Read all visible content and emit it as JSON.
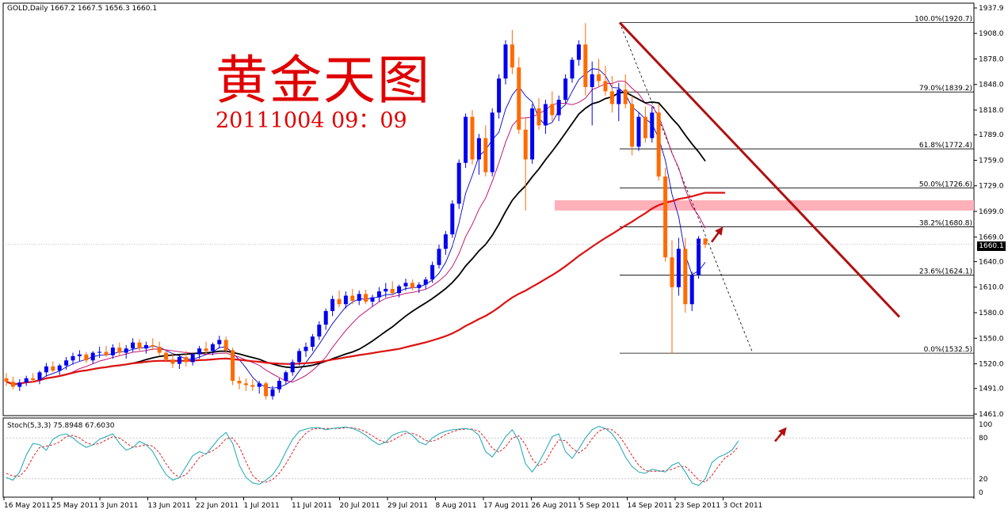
{
  "header": {
    "symbol_info": "GOLD,Daily  1667.2 1667.5 1656.3 1660.1",
    "title": "黄金天图",
    "timestamp": "20111004 09：09"
  },
  "current_price_tag": "1660.1",
  "oscillator": {
    "info": "Stoch(5,3,3) 75.8948 67.6030",
    "levels": [
      "100",
      "80",
      "20",
      "0"
    ]
  },
  "colors": {
    "bull_candle": "#0000ee",
    "bear_candle": "#ff6a00",
    "ma_fast": "#0000cc",
    "ma_mid": "#c0006a",
    "ma_slow": "#000000",
    "ma_long": "#dd1111",
    "trendline": "#b01010",
    "resistance_zone": "#ffb0b8",
    "stoch_main": "#1aa6b5",
    "stoch_signal": "#e02020"
  },
  "chart_data": [
    {
      "type": "candlestick",
      "ylim": [
        1461,
        1937
      ],
      "y_ticks": [
        1937.9,
        1908.0,
        1878.0,
        1848.0,
        1818.0,
        1789.0,
        1759.0,
        1729.0,
        1699.0,
        1669.0,
        1640.0,
        1610.0,
        1580.0,
        1550.0,
        1520.0,
        1491.0,
        1461.0
      ],
      "x_tick_labels": [
        "16 May 2011",
        "25 May 2011",
        "3 Jun 2011",
        "13 Jun 2011",
        "22 Jun 2011",
        "1 Jul 2011",
        "11 Jul 2011",
        "20 Jul 2011",
        "29 Jul 2011",
        "8 Aug 2011",
        "17 Aug 2011",
        "26 Aug 2011",
        "5 Sep 2011",
        "14 Sep 2011",
        "23 Sep 2011",
        "3 Oct 2011"
      ],
      "fibonacci": [
        {
          "label": "100.0%(1920.7)",
          "value": 1920.7
        },
        {
          "label": "79.0%(1839.2)",
          "value": 1839.2
        },
        {
          "label": "61.8%(1772.4)",
          "value": 1772.4
        },
        {
          "label": "50.0%(1726.6)",
          "value": 1726.6
        },
        {
          "label": "38.2%(1680.8)",
          "value": 1680.8
        },
        {
          "label": "23.6%(1624.1)",
          "value": 1624.1
        },
        {
          "label": "0.0%(1532.5)",
          "value": 1532.5
        }
      ],
      "resistance_zone": [
        1700,
        1712
      ],
      "current_price": 1660.1,
      "candles": [
        [
          1503,
          1509,
          1494,
          1499
        ],
        [
          1499,
          1505,
          1490,
          1493
        ],
        [
          1493,
          1502,
          1488,
          1498
        ],
        [
          1498,
          1506,
          1494,
          1503
        ],
        [
          1503,
          1509,
          1498,
          1501
        ],
        [
          1501,
          1512,
          1496,
          1510
        ],
        [
          1510,
          1521,
          1505,
          1517
        ],
        [
          1517,
          1523,
          1510,
          1512
        ],
        [
          1512,
          1520,
          1507,
          1518
        ],
        [
          1518,
          1528,
          1513,
          1524
        ],
        [
          1524,
          1533,
          1519,
          1529
        ],
        [
          1529,
          1536,
          1523,
          1531
        ],
        [
          1531,
          1534,
          1521,
          1524
        ],
        [
          1524,
          1535,
          1520,
          1533
        ],
        [
          1533,
          1540,
          1527,
          1534
        ],
        [
          1534,
          1541,
          1528,
          1530
        ],
        [
          1530,
          1543,
          1526,
          1539
        ],
        [
          1539,
          1545,
          1530,
          1533
        ],
        [
          1533,
          1542,
          1526,
          1538
        ],
        [
          1538,
          1550,
          1534,
          1545
        ],
        [
          1545,
          1549,
          1535,
          1538
        ],
        [
          1538,
          1546,
          1532,
          1542
        ],
        [
          1542,
          1550,
          1536,
          1540
        ],
        [
          1540,
          1546,
          1530,
          1533
        ],
        [
          1533,
          1537,
          1522,
          1525
        ],
        [
          1525,
          1532,
          1515,
          1520
        ],
        [
          1520,
          1530,
          1514,
          1528
        ],
        [
          1528,
          1535,
          1517,
          1522
        ],
        [
          1522,
          1533,
          1518,
          1531
        ],
        [
          1531,
          1541,
          1526,
          1538
        ],
        [
          1538,
          1546,
          1532,
          1535
        ],
        [
          1535,
          1545,
          1530,
          1543
        ],
        [
          1543,
          1553,
          1538,
          1548
        ],
        [
          1548,
          1552,
          1532,
          1536
        ],
        [
          1536,
          1539,
          1495,
          1500
        ],
        [
          1500,
          1505,
          1490,
          1497
        ],
        [
          1497,
          1503,
          1488,
          1495
        ],
        [
          1495,
          1502,
          1488,
          1493
        ],
        [
          1493,
          1500,
          1485,
          1497
        ],
        [
          1497,
          1499,
          1478,
          1482
        ],
        [
          1482,
          1494,
          1478,
          1490
        ],
        [
          1490,
          1503,
          1486,
          1500
        ],
        [
          1500,
          1512,
          1496,
          1510
        ],
        [
          1510,
          1525,
          1506,
          1522
        ],
        [
          1522,
          1538,
          1518,
          1535
        ],
        [
          1535,
          1545,
          1528,
          1540
        ],
        [
          1540,
          1555,
          1535,
          1552
        ],
        [
          1552,
          1570,
          1548,
          1566
        ],
        [
          1566,
          1585,
          1560,
          1582
        ],
        [
          1582,
          1600,
          1576,
          1596
        ],
        [
          1596,
          1606,
          1586,
          1590
        ],
        [
          1590,
          1605,
          1585,
          1600
        ],
        [
          1600,
          1608,
          1590,
          1594
        ],
        [
          1594,
          1606,
          1589,
          1602
        ],
        [
          1602,
          1607,
          1590,
          1593
        ],
        [
          1593,
          1601,
          1587,
          1598
        ],
        [
          1598,
          1610,
          1593,
          1605
        ],
        [
          1605,
          1615,
          1598,
          1608
        ],
        [
          1608,
          1617,
          1600,
          1603
        ],
        [
          1603,
          1613,
          1598,
          1611
        ],
        [
          1611,
          1620,
          1606,
          1615
        ],
        [
          1615,
          1619,
          1606,
          1609
        ],
        [
          1609,
          1616,
          1603,
          1613
        ],
        [
          1613,
          1622,
          1608,
          1619
        ],
        [
          1619,
          1640,
          1615,
          1636
        ],
        [
          1636,
          1660,
          1632,
          1655
        ],
        [
          1655,
          1676,
          1648,
          1672
        ],
        [
          1672,
          1712,
          1668,
          1708
        ],
        [
          1708,
          1760,
          1702,
          1756
        ],
        [
          1756,
          1814,
          1750,
          1810
        ],
        [
          1810,
          1818,
          1754,
          1760
        ],
        [
          1760,
          1790,
          1742,
          1785
        ],
        [
          1785,
          1800,
          1740,
          1745
        ],
        [
          1745,
          1820,
          1740,
          1815
        ],
        [
          1815,
          1860,
          1808,
          1855
        ],
        [
          1855,
          1900,
          1848,
          1895
        ],
        [
          1895,
          1912,
          1860,
          1868
        ],
        [
          1868,
          1880,
          1790,
          1795
        ],
        [
          1795,
          1810,
          1700,
          1760
        ],
        [
          1760,
          1825,
          1755,
          1820
        ],
        [
          1820,
          1832,
          1795,
          1800
        ],
        [
          1800,
          1830,
          1790,
          1825
        ],
        [
          1825,
          1840,
          1805,
          1812
        ],
        [
          1812,
          1835,
          1805,
          1830
        ],
        [
          1830,
          1860,
          1826,
          1855
        ],
        [
          1855,
          1880,
          1850,
          1877
        ],
        [
          1877,
          1900,
          1870,
          1895
        ],
        [
          1895,
          1920,
          1835,
          1845
        ],
        [
          1845,
          1875,
          1800,
          1860
        ],
        [
          1860,
          1878,
          1845,
          1852
        ],
        [
          1852,
          1870,
          1835,
          1840
        ],
        [
          1840,
          1858,
          1815,
          1825
        ],
        [
          1825,
          1850,
          1805,
          1842
        ],
        [
          1842,
          1860,
          1820,
          1825
        ],
        [
          1825,
          1835,
          1765,
          1775
        ],
        [
          1775,
          1815,
          1770,
          1810
        ],
        [
          1810,
          1822,
          1780,
          1785
        ],
        [
          1785,
          1822,
          1780,
          1815
        ],
        [
          1815,
          1825,
          1735,
          1740
        ],
        [
          1740,
          1750,
          1640,
          1645
        ],
        [
          1645,
          1665,
          1532,
          1610
        ],
        [
          1610,
          1668,
          1600,
          1655
        ],
        [
          1655,
          1668,
          1580,
          1590
        ],
        [
          1590,
          1628,
          1582,
          1624
        ],
        [
          1624,
          1670,
          1620,
          1667
        ],
        [
          1667,
          1668,
          1656,
          1660
        ]
      ],
      "moving_averages": [
        {
          "period": 5,
          "color": "ma_fast"
        },
        {
          "period": 10,
          "color": "ma_mid"
        },
        {
          "period": 20,
          "color": "ma_slow"
        },
        {
          "period": 60,
          "color": "ma_long"
        }
      ],
      "trendlines": [
        {
          "from": [
            88,
            1920
          ],
          "to": [
            120,
            1560
          ]
        }
      ]
    },
    {
      "type": "line",
      "ylim": [
        0,
        100
      ],
      "series": [
        {
          "values": [
            22,
            18,
            30,
            55,
            72,
            70,
            62,
            78,
            84,
            86,
            80,
            72,
            66,
            70,
            78,
            82,
            86,
            72,
            62,
            66,
            75,
            70,
            60,
            42,
            26,
            18,
            22,
            38,
            54,
            60,
            56,
            68,
            80,
            88,
            72,
            40,
            22,
            14,
            12,
            18,
            26,
            40,
            60,
            78,
            90,
            93,
            95,
            95,
            92,
            94,
            95,
            96,
            94,
            90,
            84,
            76,
            70,
            74,
            84,
            88,
            90,
            84,
            74,
            70,
            80,
            86,
            90,
            92,
            93,
            94,
            92,
            84,
            60,
            52,
            66,
            82,
            92,
            76,
            42,
            30,
            44,
            62,
            82,
            86,
            60,
            50,
            64,
            80,
            92,
            97,
            94,
            86,
            72,
            52,
            38,
            30,
            28,
            34,
            32,
            30,
            40,
            44,
            30,
            14,
            10,
            20,
            44,
            52,
            56,
            62,
            75.9
          ]
        },
        {
          "values": [
            28,
            24,
            24,
            34,
            52,
            66,
            68,
            70,
            74,
            82,
            84,
            80,
            73,
            70,
            72,
            77,
            82,
            80,
            73,
            66,
            68,
            70,
            68,
            58,
            42,
            29,
            22,
            26,
            38,
            51,
            57,
            61,
            68,
            79,
            80,
            67,
            45,
            25,
            16,
            15,
            19,
            28,
            42,
            59,
            76,
            87,
            93,
            94,
            94,
            94,
            94,
            95,
            95,
            93,
            89,
            83,
            77,
            73,
            76,
            82,
            87,
            87,
            83,
            76,
            75,
            79,
            85,
            89,
            92,
            93,
            93,
            90,
            79,
            65,
            59,
            67,
            80,
            83,
            70,
            49,
            39,
            45,
            63,
            77,
            76,
            65,
            58,
            65,
            79,
            90,
            94,
            92,
            84,
            70,
            54,
            40,
            32,
            31,
            31,
            32,
            34,
            38,
            38,
            29,
            18,
            15,
            25,
            39,
            51,
            57,
            67.6
          ]
        }
      ]
    }
  ]
}
